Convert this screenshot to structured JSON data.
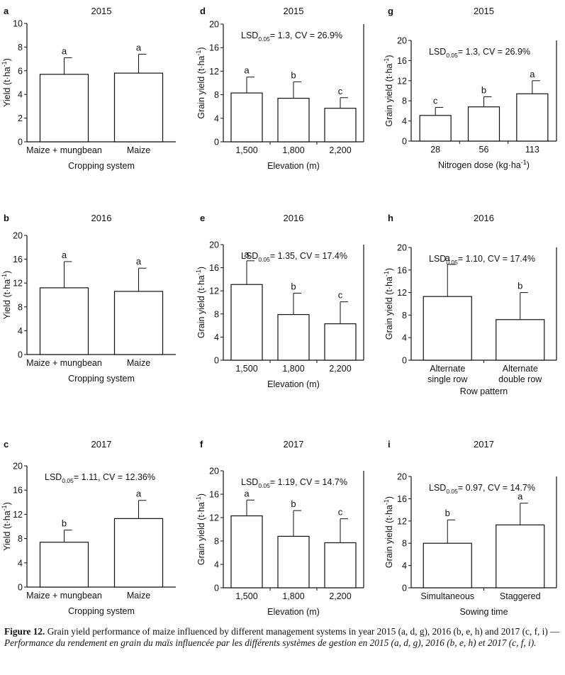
{
  "chart_data": [
    {
      "id": "a",
      "type": "bar",
      "panel_label": "a",
      "title": "2015",
      "stat_text": "",
      "xlabel": "Cropping system",
      "ylabel": "Yield (t·ha⁻¹)",
      "categories": [
        "Maize + mungbean",
        "Maize"
      ],
      "values": [
        5.7,
        5.8
      ],
      "errors": [
        1.4,
        1.6
      ],
      "letters": [
        "a",
        "a"
      ],
      "ylim": [
        0,
        10
      ],
      "yticks": [
        0,
        2,
        4,
        6,
        8,
        10
      ],
      "frame": "open"
    },
    {
      "id": "b",
      "type": "bar",
      "panel_label": "b",
      "title": "2016",
      "stat_text": "",
      "xlabel": "Cropping system",
      "ylabel": "Yield (t·ha⁻¹)",
      "categories": [
        "Maize + mungbean",
        "Maize"
      ],
      "values": [
        11.2,
        10.6
      ],
      "errors": [
        4.4,
        3.9
      ],
      "letters": [
        "a",
        "a"
      ],
      "ylim": [
        0,
        20
      ],
      "yticks": [
        0,
        4,
        8,
        12,
        16,
        20
      ],
      "frame": "open"
    },
    {
      "id": "c",
      "type": "bar",
      "panel_label": "c",
      "title": "2017",
      "stat_text": "LSD0.05= 1.11, CV = 12.36%",
      "xlabel": "Cropping system",
      "ylabel": "Yield (t·ha⁻¹)",
      "categories": [
        "Maize + mungbean",
        "Maize"
      ],
      "values": [
        7.4,
        11.3
      ],
      "errors": [
        2.0,
        3.0
      ],
      "letters": [
        "b",
        "a"
      ],
      "ylim": [
        0,
        20
      ],
      "yticks": [
        0,
        4,
        8,
        12,
        16,
        20
      ],
      "frame": "open"
    },
    {
      "id": "d",
      "type": "bar",
      "panel_label": "d",
      "title": "2015",
      "stat_text": "LSD0.05= 1.3, CV = 26.9%",
      "xlabel": "Elevation (m)",
      "ylabel": "Grain yield (t·ha⁻¹)",
      "categories": [
        "1,500",
        "1,800",
        "2,200"
      ],
      "values": [
        8.3,
        7.4,
        5.7
      ],
      "errors": [
        2.7,
        2.8,
        1.8
      ],
      "letters": [
        "a",
        "b",
        "c"
      ],
      "ylim": [
        0,
        20
      ],
      "yticks": [
        0,
        4,
        8,
        12,
        16,
        20
      ],
      "frame": "box"
    },
    {
      "id": "e",
      "type": "bar",
      "panel_label": "e",
      "title": "2016",
      "stat_text": "LSD0.05= 1.35, CV = 17.4%",
      "xlabel": "Elevation (m)",
      "ylabel": "Grain yield (t·ha⁻¹)",
      "categories": [
        "1,500",
        "1,800",
        "2,200"
      ],
      "values": [
        13.1,
        7.9,
        6.3
      ],
      "errors": [
        4.1,
        3.7,
        3.8
      ],
      "letters": [
        "a",
        "b",
        "c"
      ],
      "ylim": [
        0,
        20
      ],
      "yticks": [
        0,
        4,
        8,
        12,
        16,
        20
      ],
      "frame": "box"
    },
    {
      "id": "f",
      "type": "bar",
      "panel_label": "f",
      "title": "2017",
      "stat_text": "LSD0.05= 1.19, CV = 14.7%",
      "xlabel": "Elevation (m)",
      "ylabel": "Grain yield (t·ha⁻¹)",
      "categories": [
        "1,500",
        "1,800",
        "2,200"
      ],
      "values": [
        12.3,
        8.8,
        7.7
      ],
      "errors": [
        2.7,
        4.4,
        4.1
      ],
      "letters": [
        "a",
        "b",
        "c"
      ],
      "ylim": [
        0,
        20
      ],
      "yticks": [
        0,
        4,
        8,
        12,
        16,
        20
      ],
      "frame": "box"
    },
    {
      "id": "g",
      "type": "bar",
      "panel_label": "g",
      "title": "2015",
      "stat_text": "LSD0.05= 1.3, CV = 26.9%",
      "xlabel": "Nitrogen dose (kg·ha⁻¹)",
      "ylabel": "Grain yield (t·ha⁻¹)",
      "categories": [
        "28",
        "56",
        "113"
      ],
      "values": [
        5.1,
        6.8,
        9.4
      ],
      "errors": [
        1.6,
        2.0,
        2.6
      ],
      "letters": [
        "c",
        "b",
        "a"
      ],
      "ylim": [
        0,
        20
      ],
      "yticks": [
        0,
        4,
        8,
        12,
        16,
        20
      ],
      "frame": "box"
    },
    {
      "id": "h",
      "type": "bar",
      "panel_label": "h",
      "title": "2016",
      "stat_text": "LSD0.05= 1.10, CV = 17.4%",
      "xlabel": "Row pattern",
      "ylabel": "Grain yield (t·ha⁻¹)",
      "categories": [
        "Alternate\nsingle row",
        "Alternate\ndouble row"
      ],
      "values": [
        11.3,
        7.2
      ],
      "errors": [
        5.7,
        4.8
      ],
      "letters": [
        "a",
        "b"
      ],
      "ylim": [
        0,
        20
      ],
      "yticks": [
        0,
        4,
        8,
        12,
        16,
        20
      ],
      "frame": "box"
    },
    {
      "id": "i",
      "type": "bar",
      "panel_label": "i",
      "title": "2017",
      "stat_text": "LSD0.05= 0.97, CV = 14.7%",
      "xlabel": "Sowing time",
      "ylabel": "Grain yield (t·ha⁻¹)",
      "categories": [
        "Simultaneous",
        "Staggered"
      ],
      "values": [
        8.0,
        11.3
      ],
      "errors": [
        4.2,
        3.9
      ],
      "letters": [
        "b",
        "a"
      ],
      "ylim": [
        0,
        20
      ],
      "yticks": [
        0,
        4,
        8,
        12,
        16,
        20
      ],
      "frame": "box"
    }
  ],
  "caption": {
    "label": "Figure 12.",
    "english": "Grain yield performance of maize influenced by different management systems in year 2015 (a, d, g), 2016 (b, e, h) and 2017 (c, f, i)",
    "separator": " — ",
    "french": "Performance du rendement en grain du maïs influencée par les différents systèmes de gestion en 2015 (a, d, g), 2016 (b, e, h) et 2017 (c, f, i)."
  }
}
